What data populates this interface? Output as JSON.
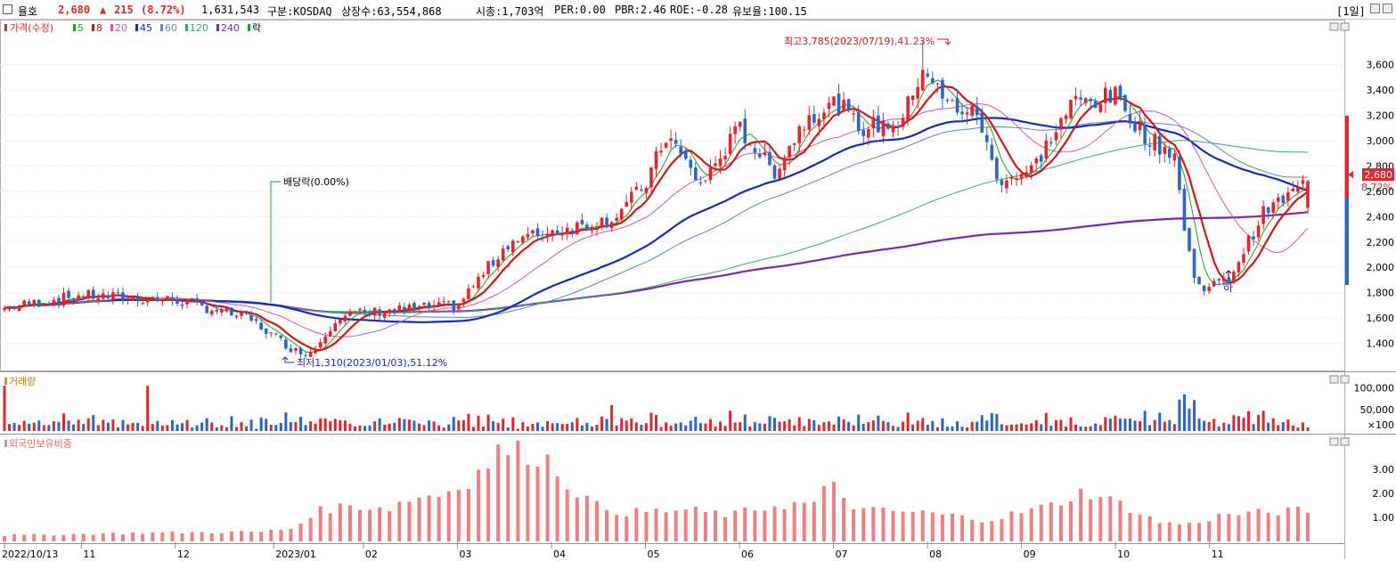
{
  "header": {
    "stock_name": "율호",
    "price": "2,680",
    "arrow": "▲",
    "change": "215",
    "change_pct": "(8.72%)",
    "volume": "1,631,543",
    "market": "구분:KOSDAQ",
    "listed_shares": "상장수:63,554,868",
    "market_cap": "시총:1,703억",
    "per": "PER:0.00",
    "pbr": "PBR:2.46",
    "roe": "ROE:-0.28",
    "retention": "유보율:100.15",
    "period": "[1일]"
  },
  "colors": {
    "up": "#e8242b",
    "down": "#2866c8",
    "ma5": "#20a020",
    "ma8": "#d01818",
    "ma20": "#d058b0",
    "ma45": "#1428c8",
    "ma60": "#5a8ab4",
    "ma120": "#38a878",
    "ma240": "#7a28b4",
    "foreign": "#f08080",
    "grid": "#d8d8d8"
  },
  "chart_data": [
    {
      "type": "candlestick",
      "title": "가격(수정)",
      "legend": {
        "price_label": "가격(수정)",
        "ma": [
          {
            "period": "5",
            "color": "#20a020"
          },
          {
            "period": "8",
            "color": "#d01818"
          },
          {
            "period": "20",
            "color": "#d058b0"
          },
          {
            "period": "45",
            "color": "#1428c8"
          },
          {
            "period": "60",
            "color": "#5a8ab4"
          },
          {
            "period": "120",
            "color": "#38a878"
          },
          {
            "period": "240",
            "color": "#7a28b4"
          }
        ],
        "dividend_label": "락"
      },
      "ylim": [
        1200,
        3900
      ],
      "y_ticks": [
        "1,400",
        "1,600",
        "1,800",
        "2,000",
        "2,200",
        "2,400",
        "2,600",
        "2,800",
        "3,000",
        "3,200",
        "3,400",
        "3,600"
      ],
      "current_price_label": "2,680",
      "current_pct_label": "8.72%",
      "annotations": {
        "high": "최고3,785(2023/07/19),41.23%",
        "low": "최저1,310(2023/01/03),51.12%",
        "dividend": "배당락(0.00%)",
        "limit_down": "하"
      },
      "key_points": [
        {
          "date": "2022/10/13",
          "close": 1680
        },
        {
          "date": "2022/11",
          "close": 1780
        },
        {
          "date": "2022/12",
          "close": 1720
        },
        {
          "date": "2023/01/03",
          "close": 1330,
          "low": 1310
        },
        {
          "date": "2023/02",
          "close": 1650
        },
        {
          "date": "2023/03",
          "close": 2300
        },
        {
          "date": "2023/04",
          "close": 2380
        },
        {
          "date": "2023/05",
          "close": 2650
        },
        {
          "date": "2023/06",
          "close": 2750
        },
        {
          "date": "2023/07/19",
          "close": 3600,
          "high": 3785
        },
        {
          "date": "2023/08",
          "close": 2700
        },
        {
          "date": "2023/09",
          "close": 3300
        },
        {
          "date": "2023/10",
          "close": 2950
        },
        {
          "date": "2023/10 하",
          "close": 1850
        },
        {
          "date": "2023/11",
          "close": 2680
        }
      ]
    },
    {
      "type": "bar",
      "title": "거래량",
      "y_ticks": [
        "100,000",
        "50,000",
        "×100"
      ]
    },
    {
      "type": "bar",
      "title": "외국인보유비중",
      "ylim": [
        0,
        4
      ],
      "y_ticks": [
        "3.00",
        "2.00",
        "1.00"
      ]
    }
  ],
  "x_axis": {
    "labels": [
      "2022/10/13",
      "11",
      "12",
      "2023/01",
      "02",
      "03",
      "04",
      "05",
      "06",
      "07",
      "08",
      "09",
      "10",
      "11"
    ]
  }
}
